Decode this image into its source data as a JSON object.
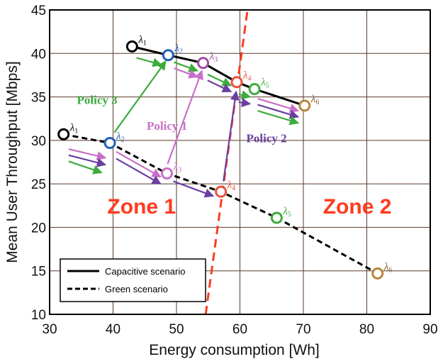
{
  "chart_data": {
    "type": "line",
    "title": "",
    "xlabel": "Energy consumption [Wh]",
    "ylabel": "Mean User Throughput [Mbps]",
    "xlim": [
      30,
      90
    ],
    "ylim": [
      10,
      45
    ],
    "xticks": [
      30,
      40,
      50,
      60,
      70,
      80,
      90
    ],
    "yticks": [
      10,
      15,
      20,
      25,
      30,
      35,
      40,
      45
    ],
    "grid": true,
    "legend": {
      "placement": "bottom-left",
      "entries": [
        {
          "label": "Capacitive scenario",
          "style": "solid"
        },
        {
          "label": "Green scenario",
          "style": "dashed"
        }
      ]
    },
    "series": [
      {
        "name": "Capacitive scenario",
        "style": "solid",
        "points": [
          {
            "x": 43,
            "y": 40.8,
            "label": "λ",
            "sub": "1",
            "color": "#000000",
            "labelColor": "#000000"
          },
          {
            "x": 48.7,
            "y": 39.8,
            "label": "λ",
            "sub": "2",
            "color": "#1f5fb5",
            "labelColor": "#1f5fb5"
          },
          {
            "x": 54.2,
            "y": 38.9,
            "label": "λ",
            "sub": "3",
            "color": "#9c4ea6",
            "labelColor": "#9c4ea6"
          },
          {
            "x": 59.5,
            "y": 36.7,
            "label": "λ",
            "sub": "4",
            "color": "#e8533a",
            "labelColor": "#e8533a"
          },
          {
            "x": 62.3,
            "y": 35.9,
            "label": "λ",
            "sub": "5",
            "color": "#3cab3c",
            "labelColor": "#3cab3c"
          },
          {
            "x": 70.2,
            "y": 34.0,
            "label": "λ",
            "sub": "6",
            "color": "#b6873a",
            "labelColor": "#8b5a2b"
          }
        ]
      },
      {
        "name": "Green scenario",
        "style": "dashed",
        "points": [
          {
            "x": 32.2,
            "y": 30.7,
            "label": "λ",
            "sub": "1",
            "color": "#000000",
            "labelColor": "#000000"
          },
          {
            "x": 39.5,
            "y": 29.7,
            "label": "λ",
            "sub": "2",
            "color": "#1f5fb5",
            "labelColor": "#1f5fb5"
          },
          {
            "x": 48.5,
            "y": 26.2,
            "label": "λ",
            "sub": "3",
            "color": "#c86fc8",
            "labelColor": "#c86fc8"
          },
          {
            "x": 57.0,
            "y": 24.1,
            "label": "λ",
            "sub": "4",
            "color": "#e8533a",
            "labelColor": "#e8533a"
          },
          {
            "x": 65.8,
            "y": 21.1,
            "label": "λ",
            "sub": "5",
            "color": "#3cab3c",
            "labelColor": "#3cab3c"
          },
          {
            "x": 81.7,
            "y": 14.7,
            "label": "λ",
            "sub": "6",
            "color": "#b6873a",
            "labelColor": "#8b5a2b"
          }
        ]
      }
    ],
    "threshold_line": {
      "x1": 54.6,
      "y1": 10,
      "x2": 61.2,
      "y2": 45,
      "color": "#ff3b1f"
    },
    "zones": [
      {
        "text": "Zone 1",
        "x": 44.5,
        "y": 21.6,
        "color": "#ff3b1f"
      },
      {
        "text": "Zone 2",
        "x": 78.5,
        "y": 21.6,
        "color": "#ff3b1f"
      }
    ],
    "policies": [
      {
        "text": "Policy 3",
        "x": 37.5,
        "y": 34.2,
        "color": "#3cab3c"
      },
      {
        "text": "Policy 1",
        "x": 48.5,
        "y": 31.2,
        "color": "#c86fc8"
      },
      {
        "text": "Policy 2",
        "x": 64.2,
        "y": 29.8,
        "color": "#6a3fa0"
      }
    ],
    "arrows": [
      {
        "x1": 33.0,
        "y1": 29.0,
        "x2": 38.8,
        "y2": 28.0,
        "color": "#c86fc8"
      },
      {
        "x1": 33.0,
        "y1": 28.3,
        "x2": 38.8,
        "y2": 27.2,
        "color": "#6a3fa0"
      },
      {
        "x1": 33.0,
        "y1": 27.6,
        "x2": 38.2,
        "y2": 26.3,
        "color": "#3cab3c"
      },
      {
        "x1": 40.5,
        "y1": 28.7,
        "x2": 47.5,
        "y2": 25.8,
        "color": "#c86fc8"
      },
      {
        "x1": 40.5,
        "y1": 27.9,
        "x2": 47.5,
        "y2": 25.0,
        "color": "#6a3fa0"
      },
      {
        "x1": 49.5,
        "y1": 25.3,
        "x2": 55.8,
        "y2": 23.6,
        "color": "#6a3fa0"
      },
      {
        "x1": 40.2,
        "y1": 30.9,
        "x2": 48.3,
        "y2": 39.1,
        "color": "#3cab3c"
      },
      {
        "x1": 48.6,
        "y1": 27.3,
        "x2": 54.0,
        "y2": 38.0,
        "color": "#c86fc8"
      },
      {
        "x1": 57.4,
        "y1": 25.3,
        "x2": 59.4,
        "y2": 35.6,
        "color": "#6a3fa0"
      },
      {
        "x1": 43.7,
        "y1": 39.5,
        "x2": 47.6,
        "y2": 38.7,
        "color": "#3cab3c"
      },
      {
        "x1": 49.6,
        "y1": 39.0,
        "x2": 53.3,
        "y2": 38.0,
        "color": "#3cab3c"
      },
      {
        "x1": 49.6,
        "y1": 38.3,
        "x2": 53.3,
        "y2": 37.3,
        "color": "#c86fc8"
      },
      {
        "x1": 54.9,
        "y1": 37.6,
        "x2": 58.6,
        "y2": 36.3,
        "color": "#3cab3c"
      },
      {
        "x1": 54.9,
        "y1": 36.9,
        "x2": 58.6,
        "y2": 35.6,
        "color": "#6a3fa0"
      },
      {
        "x1": 59.8,
        "y1": 35.3,
        "x2": 61.6,
        "y2": 35.0,
        "color": "#3cab3c"
      },
      {
        "x1": 59.8,
        "y1": 34.4,
        "x2": 61.6,
        "y2": 34.2,
        "color": "#6a3fa0"
      },
      {
        "x1": 62.8,
        "y1": 34.8,
        "x2": 69.2,
        "y2": 33.4,
        "color": "#c86fc8"
      },
      {
        "x1": 62.8,
        "y1": 34.1,
        "x2": 69.2,
        "y2": 32.7,
        "color": "#6a3fa0"
      },
      {
        "x1": 62.8,
        "y1": 33.4,
        "x2": 69.2,
        "y2": 32.0,
        "color": "#3cab3c"
      }
    ]
  }
}
